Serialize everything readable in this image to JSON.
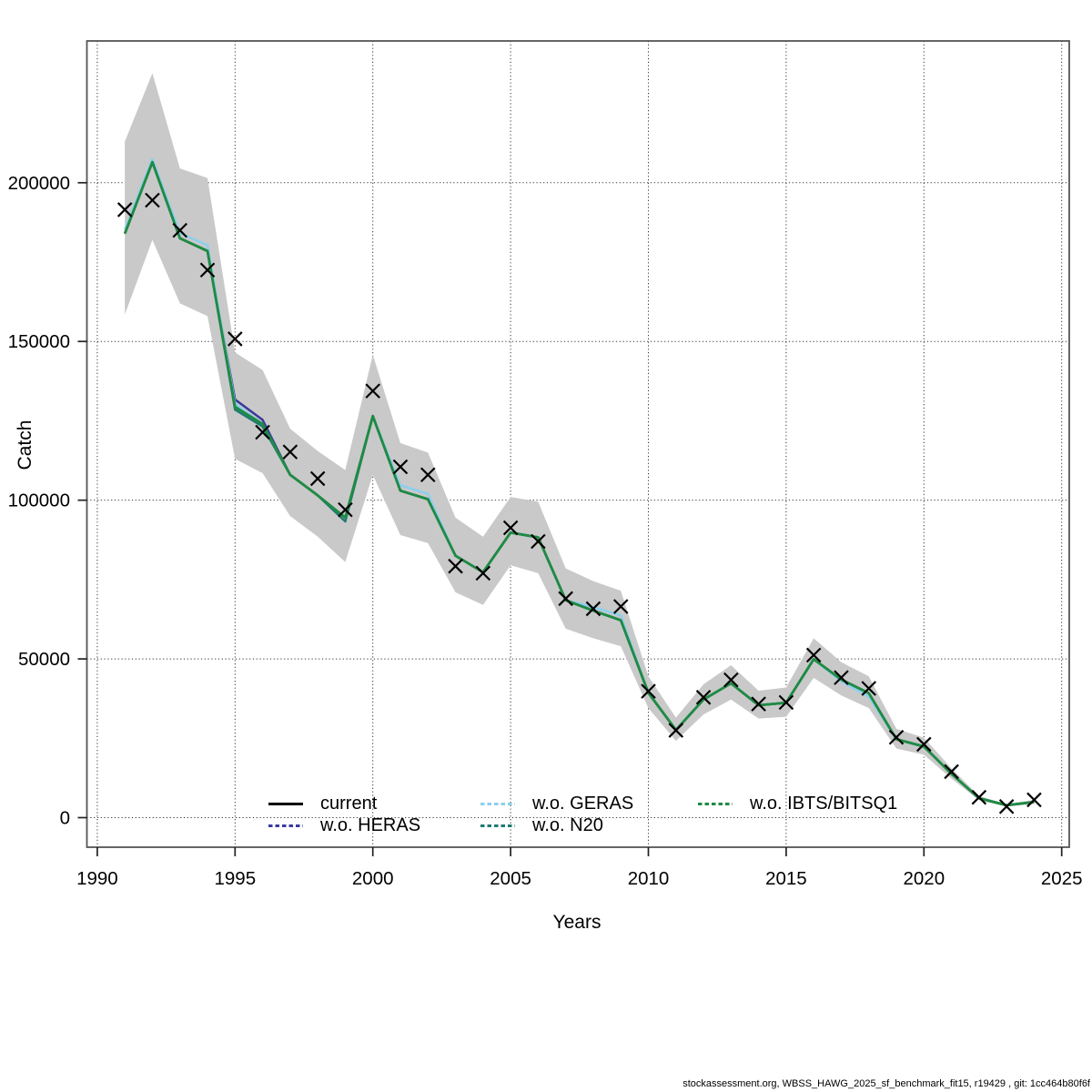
{
  "page": {
    "background": "#ffffff"
  },
  "footer": {
    "text": "stockassessment.org, WBSS_HAWG_2025_sf_benchmark_fit15, r19429 , git: 1cc464b80f6f"
  },
  "chart_data": {
    "type": "line",
    "title": "",
    "xlabel": "Years",
    "ylabel": "Catch",
    "x_ticks": [
      1990,
      1995,
      2000,
      2005,
      2010,
      2015,
      2020,
      2025
    ],
    "y_ticks": [
      0,
      50000,
      100000,
      150000,
      200000
    ],
    "xlim": [
      1989.6,
      2025.3
    ],
    "ylim": [
      -9300,
      244700
    ],
    "grid": "dotted-both-axes",
    "band_color": "#c9c9c9",
    "marker": {
      "symbol": "x",
      "color": "#000000",
      "meaning": "observed catch"
    },
    "legend_position": "bottom-inside",
    "years": [
      1991,
      1992,
      1993,
      1994,
      1995,
      1996,
      1997,
      1998,
      1999,
      2000,
      2001,
      2002,
      2003,
      2004,
      2005,
      2006,
      2007,
      2008,
      2009,
      2010,
      2011,
      2012,
      2013,
      2014,
      2015,
      2016,
      2017,
      2018,
      2019,
      2020,
      2021,
      2022,
      2023,
      2024
    ],
    "observed": [
      191500,
      194500,
      185000,
      172500,
      150800,
      121400,
      115200,
      106800,
      97000,
      134400,
      110500,
      108000,
      79200,
      77000,
      91300,
      87000,
      69000,
      65800,
      66500,
      39800,
      27500,
      37900,
      43400,
      35800,
      36300,
      51200,
      44100,
      40700,
      25300,
      23100,
      14500,
      6400,
      3500,
      5600
    ],
    "band": {
      "hi": [
        213000,
        234500,
        204500,
        201500,
        146500,
        141000,
        122500,
        115500,
        109500,
        145800,
        118000,
        115000,
        94500,
        88500,
        101000,
        99500,
        78500,
        74500,
        71500,
        44500,
        31500,
        42000,
        48000,
        40000,
        41000,
        56500,
        49000,
        44500,
        28000,
        25200,
        15500,
        6800,
        4300,
        5600
      ],
      "lo": [
        158500,
        182000,
        162000,
        158000,
        113000,
        108500,
        95000,
        88500,
        80500,
        108000,
        89000,
        86500,
        71000,
        67000,
        79500,
        77000,
        59500,
        56500,
        54000,
        34500,
        24200,
        32500,
        37200,
        31200,
        31800,
        44000,
        38500,
        34500,
        21800,
        19800,
        12300,
        5500,
        3500,
        4300
      ]
    },
    "series": [
      {
        "name": "current",
        "color": "#000000",
        "line_style": "solid",
        "values": [
          184000,
          206500,
          182500,
          178500,
          129400,
          124000,
          108000,
          101500,
          94500,
          126500,
          103000,
          100300,
          82500,
          77300,
          89800,
          88300,
          68500,
          65200,
          62200,
          39300,
          27600,
          37200,
          42300,
          35400,
          36200,
          49900,
          43500,
          39200,
          24700,
          22400,
          13800,
          6100,
          3900,
          4900
        ]
      },
      {
        "name": "w.o. HERAS",
        "color": "#3a3a9e",
        "line_style": "dashed",
        "values": [
          184000,
          206500,
          182500,
          178500,
          131700,
          125300,
          108000,
          101500,
          94500,
          126500,
          103000,
          100300,
          82500,
          77300,
          89800,
          88300,
          68500,
          65200,
          62200,
          39300,
          27600,
          37200,
          42300,
          35400,
          36200,
          49900,
          43500,
          39200,
          24700,
          22400,
          13800,
          6100,
          3900,
          4900
        ]
      },
      {
        "name": "w.o. GERAS",
        "color": "#8ccfee",
        "line_style": "dashed",
        "values": [
          185300,
          207500,
          184100,
          180300,
          130400,
          124000,
          108000,
          101500,
          94500,
          126500,
          104700,
          102000,
          82500,
          77300,
          89800,
          88300,
          68500,
          66300,
          63700,
          39300,
          27600,
          37200,
          42300,
          35400,
          36200,
          49900,
          42900,
          38100,
          24700,
          22400,
          13800,
          6100,
          3900,
          4900
        ]
      },
      {
        "name": "w.o. N20",
        "color": "#1f7a72",
        "line_style": "dashed",
        "values": [
          184000,
          206500,
          182500,
          178500,
          128500,
          123200,
          108000,
          101500,
          93300,
          126500,
          103000,
          100300,
          82500,
          77300,
          89800,
          88300,
          68500,
          65200,
          62200,
          39300,
          27600,
          37200,
          42300,
          35400,
          36200,
          49900,
          43500,
          39200,
          24700,
          22400,
          13800,
          6100,
          3900,
          4900
        ]
      },
      {
        "name": "w.o. IBTS/BITSQ1",
        "color": "#1f8b43",
        "line_style": "dashed",
        "values": [
          184000,
          206500,
          182500,
          178500,
          129400,
          124000,
          108000,
          101500,
          94500,
          126500,
          103000,
          100300,
          82500,
          77300,
          89800,
          88300,
          68500,
          65200,
          62200,
          39300,
          27600,
          37200,
          42300,
          35400,
          36200,
          49900,
          43500,
          39200,
          24700,
          22400,
          13800,
          6100,
          3900,
          4900
        ]
      }
    ]
  }
}
